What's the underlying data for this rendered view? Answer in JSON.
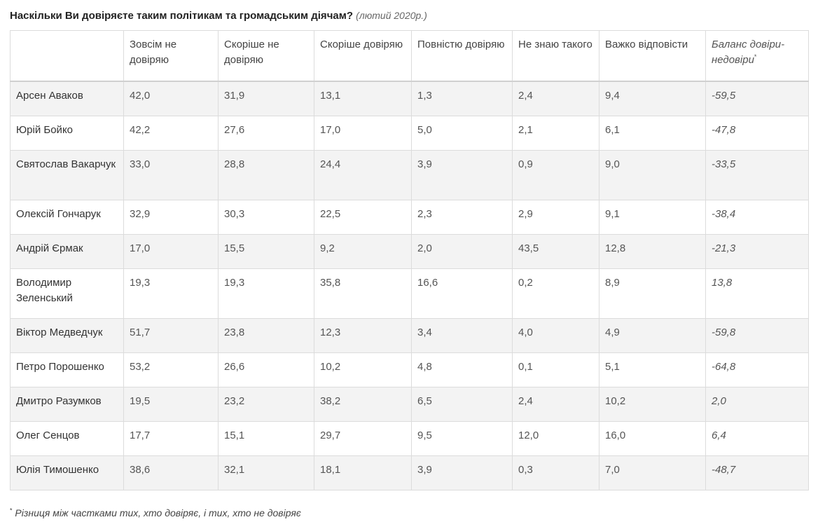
{
  "title": {
    "main": "Наскільки Ви довіряєте таким політикам та громадським діячам?",
    "sub": "(лютий 2020р.)"
  },
  "table": {
    "headers": [
      "",
      "Зовсім не довіряю",
      "Скоріше не довіряю",
      "Скоріше довіряю",
      "Повністю довіряю",
      "Не знаю такого",
      "Важко відповісти",
      "Баланс довіри-недовіри"
    ],
    "balance_marker": "*",
    "rows": [
      {
        "name": "Арсен Аваков",
        "values": [
          "42,0",
          "31,9",
          "13,1",
          "1,3",
          "2,4",
          "9,4"
        ],
        "balance": "-59,5"
      },
      {
        "name": "Юрій Бойко",
        "values": [
          "42,2",
          "27,6",
          "17,0",
          "5,0",
          "2,1",
          "6,1"
        ],
        "balance": "-47,8"
      },
      {
        "name": "Святослав Вакарчук",
        "values": [
          "33,0",
          "28,8",
          "24,4",
          "3,9",
          "0,9",
          "9,0"
        ],
        "balance": "-33,5"
      },
      {
        "name": "Олексій Гончарук",
        "values": [
          "32,9",
          "30,3",
          "22,5",
          "2,3",
          "2,9",
          "9,1"
        ],
        "balance": "-38,4"
      },
      {
        "name": "Андрій Єрмак",
        "values": [
          "17,0",
          "15,5",
          "9,2",
          "2,0",
          "43,5",
          "12,8"
        ],
        "balance": "-21,3"
      },
      {
        "name": "Володимир Зеленський",
        "values": [
          "19,3",
          "19,3",
          "35,8",
          "16,6",
          "0,2",
          "8,9"
        ],
        "balance": "13,8"
      },
      {
        "name": "Віктор Медведчук",
        "values": [
          "51,7",
          "23,8",
          "12,3",
          "3,4",
          "4,0",
          "4,9"
        ],
        "balance": "-59,8"
      },
      {
        "name": "Петро Порошенко",
        "values": [
          "53,2",
          "26,6",
          "10,2",
          "4,8",
          "0,1",
          "5,1"
        ],
        "balance": "-64,8"
      },
      {
        "name": "Дмитро Разумков",
        "values": [
          "19,5",
          "23,2",
          "38,2",
          "6,5",
          "2,4",
          "10,2"
        ],
        "balance": "2,0"
      },
      {
        "name": "Олег Сенцов",
        "values": [
          "17,7",
          "15,1",
          "29,7",
          "9,5",
          "12,0",
          "16,0"
        ],
        "balance": "6,4"
      },
      {
        "name": "Юлія Тимошенко",
        "values": [
          "38,6",
          "32,1",
          "18,1",
          "3,9",
          "0,3",
          "7,0"
        ],
        "balance": "-48,7"
      }
    ]
  },
  "footnote": {
    "marker": "*",
    "text": "Різниця між частками тих, хто довіряє, і тих, хто не довіряє"
  }
}
